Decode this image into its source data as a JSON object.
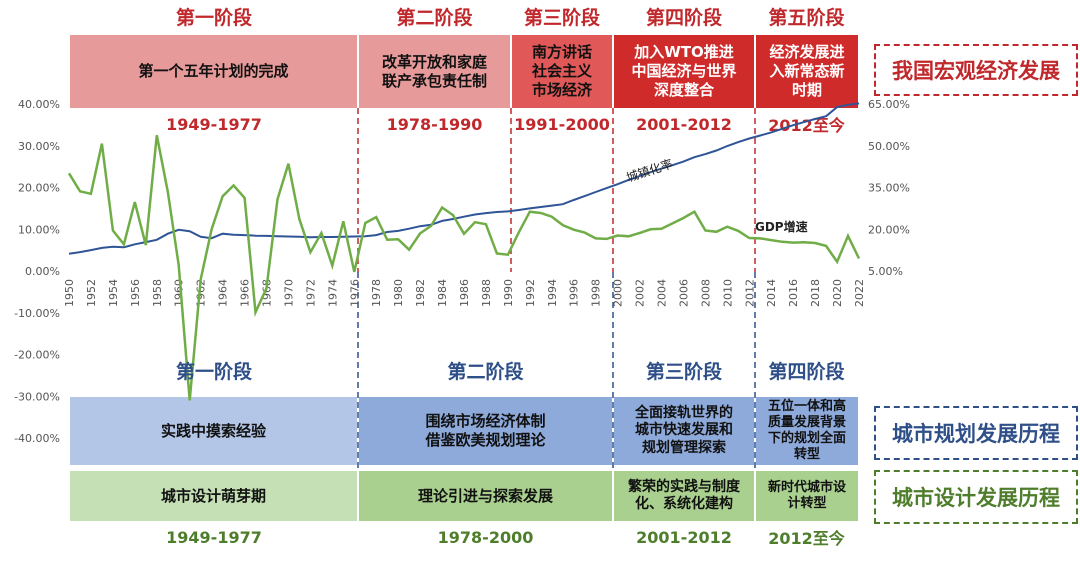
{
  "top_stage_titles": [
    "第一阶段",
    "第二阶段",
    "第三阶段",
    "第四阶段",
    "第五阶段"
  ],
  "top_boxes": [
    "第一个五年计划的完成",
    "改革开放和家庭\n联产承包责任制",
    "南方讲话\n社会主义\n市场经济",
    "加入WTO推进\n中国经济与世界\n深度整合",
    "经济发展进\n入新常态新\n时期"
  ],
  "top_periods": [
    "1949-1977",
    "1978-1990",
    "1991-2000",
    "2001-2012",
    "2012至今"
  ],
  "side_labels": {
    "macro": "我国宏观经济发展",
    "planning": "城市规划发展历程",
    "design": "城市设计发展历程"
  },
  "bottom_stage_titles": [
    "第一阶段",
    "第二阶段",
    "第三阶段",
    "第四阶段"
  ],
  "planning_boxes": [
    "实践中摸索经验",
    "围绕市场经济体制\n借鉴欧美规划理论",
    "全面接轨世界的\n城市快速发展和\n规划管理探索",
    "五位一体和高\n质量发展背景\n下的规划全面\n转型"
  ],
  "design_boxes": [
    "城市设计萌芽期",
    "理论引进与探索发展",
    "繁荣的实践与制度\n化、系统化建构",
    "新时代城市设\n计转型"
  ],
  "design_periods": [
    "1949-1977",
    "1978-2000",
    "2001-2012",
    "2012至今"
  ],
  "colors": {
    "red": "#c0282c",
    "pink_box": "#e79a9a",
    "red_box": "#e05858",
    "dark_red_box": "#cf2b2b",
    "light_blue_box": "#b4c6e7",
    "blue_box": "#8eaadb",
    "light_green_box": "#c5e0b4",
    "green_box": "#a9d08e",
    "green_line": "#70ad47",
    "blue_line": "#2f5597",
    "navy_title": "#2f4f88"
  },
  "chart_data": {
    "type": "line",
    "x": [
      1950,
      1951,
      1952,
      1953,
      1954,
      1955,
      1956,
      1957,
      1958,
      1959,
      1960,
      1961,
      1962,
      1963,
      1964,
      1965,
      1966,
      1967,
      1968,
      1969,
      1970,
      1971,
      1972,
      1973,
      1974,
      1975,
      1976,
      1977,
      1978,
      1979,
      1980,
      1981,
      1982,
      1983,
      1984,
      1985,
      1986,
      1987,
      1988,
      1989,
      1990,
      1991,
      1992,
      1993,
      1994,
      1995,
      1996,
      1997,
      1998,
      1999,
      2000,
      2001,
      2002,
      2003,
      2004,
      2005,
      2006,
      2007,
      2008,
      2009,
      2010,
      2011,
      2012,
      2013,
      2014,
      2015,
      2016,
      2017,
      2018,
      2019,
      2020,
      2021,
      2022
    ],
    "x_tick_labels": [
      "1950",
      "1952",
      "1954",
      "1956",
      "1958",
      "1960",
      "1962",
      "1964",
      "1966",
      "1968",
      "1970",
      "1972",
      "1974",
      "1976",
      "1978",
      "1980",
      "1982",
      "1984",
      "1986",
      "1988",
      "1990",
      "1992",
      "1994",
      "1996",
      "1998",
      "2000",
      "2002",
      "2004",
      "2006",
      "2008",
      "2010",
      "2012",
      "2014",
      "2016",
      "2018",
      "2020",
      "2022"
    ],
    "left_axis": {
      "ylim": [
        -40,
        40
      ],
      "ticks": [
        "40.00%",
        "30.00%",
        "20.00%",
        "10.00%",
        "0.00%",
        "-10.00%",
        "-20.00%",
        "-30.00%",
        "-40.00%"
      ]
    },
    "right_axis": {
      "ylim": [
        5,
        65
      ],
      "ticks": [
        "65.00%",
        "50.00%",
        "35.00%",
        "20.00%",
        "5.00%"
      ]
    },
    "series": [
      {
        "name": "GDP增速",
        "axis": "left",
        "values": [
          23.4,
          19.1,
          18.5,
          30.5,
          9.7,
          6.4,
          16.5,
          6.2,
          32.5,
          19.0,
          1.4,
          -31.0,
          -2.0,
          10.0,
          17.9,
          20.5,
          17.5,
          -9.9,
          -4.1,
          17.2,
          25.7,
          12.4,
          4.5,
          9.1,
          1.3,
          11.9,
          -0.2,
          11.5,
          12.9,
          7.5,
          7.6,
          5.1,
          9.0,
          10.8,
          15.2,
          13.4,
          8.9,
          11.7,
          11.2,
          4.2,
          3.9,
          9.3,
          14.2,
          13.9,
          13.0,
          11.0,
          9.9,
          9.2,
          7.8,
          7.7,
          8.5,
          8.3,
          9.1,
          10.0,
          10.1,
          11.4,
          12.7,
          14.2,
          9.7,
          9.4,
          10.6,
          9.6,
          7.9,
          7.8,
          7.4,
          7.0,
          6.8,
          6.9,
          6.7,
          6.0,
          2.2,
          8.4,
          3.0
        ]
      },
      {
        "name": "城镇化率",
        "axis": "right",
        "values": [
          11.2,
          11.8,
          12.5,
          13.3,
          13.7,
          13.5,
          14.6,
          15.4,
          16.2,
          18.4,
          19.8,
          19.3,
          17.3,
          16.8,
          18.4,
          18.0,
          17.9,
          17.7,
          17.6,
          17.5,
          17.4,
          17.3,
          17.1,
          17.2,
          17.2,
          17.3,
          17.4,
          17.5,
          17.9,
          19.0,
          19.4,
          20.2,
          21.1,
          21.6,
          23.0,
          23.7,
          24.5,
          25.3,
          25.8,
          26.2,
          26.4,
          26.9,
          27.5,
          28.0,
          28.5,
          29.0,
          30.5,
          31.9,
          33.4,
          34.8,
          36.2,
          37.7,
          39.1,
          40.5,
          41.8,
          43.0,
          44.3,
          45.9,
          47.0,
          48.3,
          49.9,
          51.3,
          52.6,
          53.7,
          54.8,
          56.1,
          57.4,
          58.5,
          59.6,
          60.6,
          63.9,
          64.7,
          65.2
        ]
      }
    ]
  }
}
